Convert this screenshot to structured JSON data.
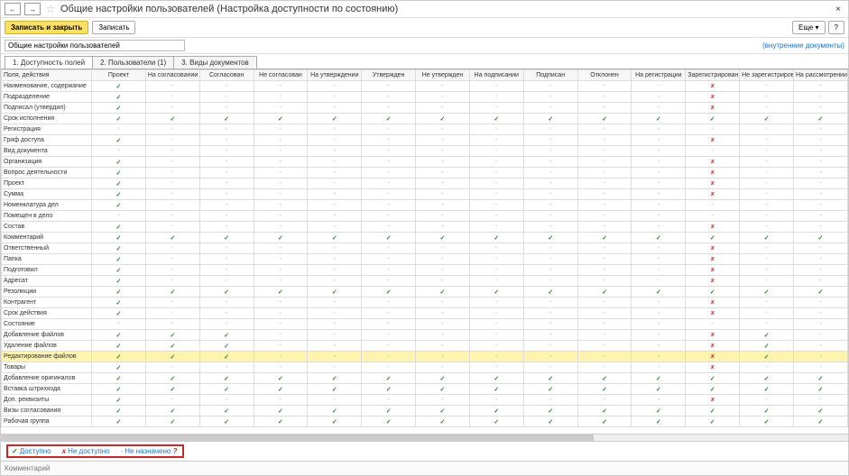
{
  "title": "Общие настройки пользователей (Настройка доступности по состоянию)",
  "nav": {
    "back": "←",
    "forward": "→"
  },
  "close": "×",
  "toolbar": {
    "save_close": "Записать и закрыть",
    "save": "Записать",
    "more": "Еще ▾",
    "help": "?"
  },
  "description": "Общие настройки пользователей",
  "internal_docs_link": "(внутренние документы)",
  "tabs": [
    "1. Доступность полей",
    "2. Пользователи (1)",
    "3. Виды документов"
  ],
  "columns": [
    "Поля, действия",
    "Проект",
    "На согласовании",
    "Согласован",
    "Не согласован",
    "На утверждении",
    "Утвержден",
    "Не утвержден",
    "На подписании",
    "Подписан",
    "Отклонен",
    "На регистрации",
    "Зарегистрирован",
    "Не зарегистрирован",
    "На рассмотрении"
  ],
  "rows": [
    {
      "label": "Наименование, содержание",
      "c": [
        "v",
        "-",
        "-",
        "-",
        "-",
        "-",
        "-",
        "-",
        "-",
        "-",
        "-",
        "x",
        "-",
        "-"
      ]
    },
    {
      "label": "Подразделение",
      "c": [
        "v",
        "-",
        "-",
        "-",
        "-",
        "-",
        "-",
        "-",
        "-",
        "-",
        "-",
        "x",
        "-",
        "-"
      ]
    },
    {
      "label": "Подписал (утвердил)",
      "c": [
        "v",
        "-",
        "-",
        "-",
        "-",
        "-",
        "-",
        "-",
        "-",
        "-",
        "-",
        "x",
        "-",
        "-"
      ]
    },
    {
      "label": "Срок исполнения",
      "c": [
        "v",
        "v",
        "v",
        "v",
        "v",
        "v",
        "v",
        "v",
        "v",
        "v",
        "v",
        "v",
        "v",
        "v"
      ]
    },
    {
      "label": "Регистрация",
      "c": [
        "-",
        "-",
        "-",
        "-",
        "-",
        "-",
        "-",
        "-",
        "-",
        "-",
        "-",
        "-",
        "-",
        "-"
      ]
    },
    {
      "label": "Гриф доступа",
      "c": [
        "v",
        "-",
        "-",
        "-",
        "-",
        "-",
        "-",
        "-",
        "-",
        "-",
        "-",
        "x",
        "-",
        "-"
      ]
    },
    {
      "label": "Вид документа",
      "c": [
        "-",
        "-",
        "-",
        "-",
        "-",
        "-",
        "-",
        "-",
        "-",
        "-",
        "-",
        "-",
        "-",
        "-"
      ]
    },
    {
      "label": "Организация",
      "c": [
        "v",
        "-",
        "-",
        "-",
        "-",
        "-",
        "-",
        "-",
        "-",
        "-",
        "-",
        "x",
        "-",
        "-"
      ]
    },
    {
      "label": "Вопрос деятельности",
      "c": [
        "v",
        "-",
        "-",
        "-",
        "-",
        "-",
        "-",
        "-",
        "-",
        "-",
        "-",
        "x",
        "-",
        "-"
      ]
    },
    {
      "label": "Проект",
      "c": [
        "v",
        "-",
        "-",
        "-",
        "-",
        "-",
        "-",
        "-",
        "-",
        "-",
        "-",
        "x",
        "-",
        "-"
      ]
    },
    {
      "label": "Сумма",
      "c": [
        "v",
        "-",
        "-",
        "-",
        "-",
        "-",
        "-",
        "-",
        "-",
        "-",
        "-",
        "x",
        "-",
        "-"
      ]
    },
    {
      "label": "Номенклатура дел",
      "c": [
        "v",
        "-",
        "-",
        "-",
        "-",
        "-",
        "-",
        "-",
        "-",
        "-",
        "-",
        "-",
        "-",
        "-"
      ]
    },
    {
      "label": "Помещен в дело",
      "c": [
        "-",
        "-",
        "-",
        "-",
        "-",
        "-",
        "-",
        "-",
        "-",
        "-",
        "-",
        "-",
        "-",
        "-"
      ]
    },
    {
      "label": "Состав",
      "c": [
        "v",
        "-",
        "-",
        "-",
        "-",
        "-",
        "-",
        "-",
        "-",
        "-",
        "-",
        "x",
        "-",
        "-"
      ]
    },
    {
      "label": "Комментарий",
      "c": [
        "v",
        "v",
        "v",
        "v",
        "v",
        "v",
        "v",
        "v",
        "v",
        "v",
        "v",
        "v",
        "v",
        "v"
      ]
    },
    {
      "label": "Ответственный",
      "c": [
        "v",
        "-",
        "-",
        "-",
        "-",
        "-",
        "-",
        "-",
        "-",
        "-",
        "-",
        "x",
        "-",
        "-"
      ]
    },
    {
      "label": "Папка",
      "c": [
        "v",
        "-",
        "-",
        "-",
        "-",
        "-",
        "-",
        "-",
        "-",
        "-",
        "-",
        "x",
        "-",
        "-"
      ]
    },
    {
      "label": "Подготовил",
      "c": [
        "v",
        "-",
        "-",
        "-",
        "-",
        "-",
        "-",
        "-",
        "-",
        "-",
        "-",
        "x",
        "-",
        "-"
      ]
    },
    {
      "label": "Адресат",
      "c": [
        "v",
        "-",
        "-",
        "-",
        "-",
        "-",
        "-",
        "-",
        "-",
        "-",
        "-",
        "x",
        "-",
        "-"
      ]
    },
    {
      "label": "Резолюции",
      "c": [
        "v",
        "v",
        "v",
        "v",
        "v",
        "v",
        "v",
        "v",
        "v",
        "v",
        "v",
        "v",
        "v",
        "v"
      ]
    },
    {
      "label": "Контрагент",
      "c": [
        "v",
        "-",
        "-",
        "-",
        "-",
        "-",
        "-",
        "-",
        "-",
        "-",
        "-",
        "x",
        "-",
        "-"
      ]
    },
    {
      "label": "Срок действия",
      "c": [
        "v",
        "-",
        "-",
        "-",
        "-",
        "-",
        "-",
        "-",
        "-",
        "-",
        "-",
        "x",
        "-",
        "-"
      ]
    },
    {
      "label": "Состояние",
      "c": [
        "-",
        "-",
        "-",
        "-",
        "-",
        "-",
        "-",
        "-",
        "-",
        "-",
        "-",
        "-",
        "-",
        "-"
      ]
    },
    {
      "label": "Добавление файлов",
      "c": [
        "v",
        "v",
        "v",
        "-",
        "-",
        "-",
        "-",
        "-",
        "-",
        "-",
        "-",
        "x",
        "v",
        "-"
      ]
    },
    {
      "label": "Удаление файлов",
      "c": [
        "v",
        "v",
        "v",
        "-",
        "-",
        "-",
        "-",
        "-",
        "-",
        "-",
        "-",
        "x",
        "v",
        "-"
      ]
    },
    {
      "label": "Редактирование файлов",
      "c": [
        "v",
        "v",
        "v",
        "-",
        "-",
        "-",
        "-",
        "-",
        "-",
        "-",
        "-",
        "x",
        "v",
        "-"
      ],
      "hl": true
    },
    {
      "label": "Товары",
      "c": [
        "v",
        "-",
        "-",
        "-",
        "-",
        "-",
        "-",
        "-",
        "-",
        "-",
        "-",
        "x",
        "-",
        "-"
      ]
    },
    {
      "label": "Добавление оригиналов",
      "c": [
        "v",
        "v",
        "v",
        "v",
        "v",
        "v",
        "v",
        "v",
        "v",
        "v",
        "v",
        "v",
        "v",
        "v"
      ]
    },
    {
      "label": "Вставка штрихкода",
      "c": [
        "v",
        "v",
        "v",
        "v",
        "v",
        "v",
        "v",
        "v",
        "v",
        "v",
        "v",
        "v",
        "v",
        "v"
      ]
    },
    {
      "label": "Доп. реквизиты",
      "c": [
        "v",
        "-",
        "-",
        "-",
        "-",
        "-",
        "-",
        "-",
        "-",
        "-",
        "-",
        "x",
        "-",
        "-"
      ]
    },
    {
      "label": "Визы согласования",
      "c": [
        "v",
        "v",
        "v",
        "v",
        "v",
        "v",
        "v",
        "v",
        "v",
        "v",
        "v",
        "v",
        "v",
        "v"
      ]
    },
    {
      "label": "Рабочая группа",
      "c": [
        "v",
        "v",
        "v",
        "v",
        "v",
        "v",
        "v",
        "v",
        "v",
        "v",
        "v",
        "v",
        "v",
        "v"
      ]
    }
  ],
  "legend": {
    "available": "Доступно",
    "not_available": "Не доступно",
    "not_assigned": "Не назначено"
  },
  "comment_placeholder": "Комментарий"
}
